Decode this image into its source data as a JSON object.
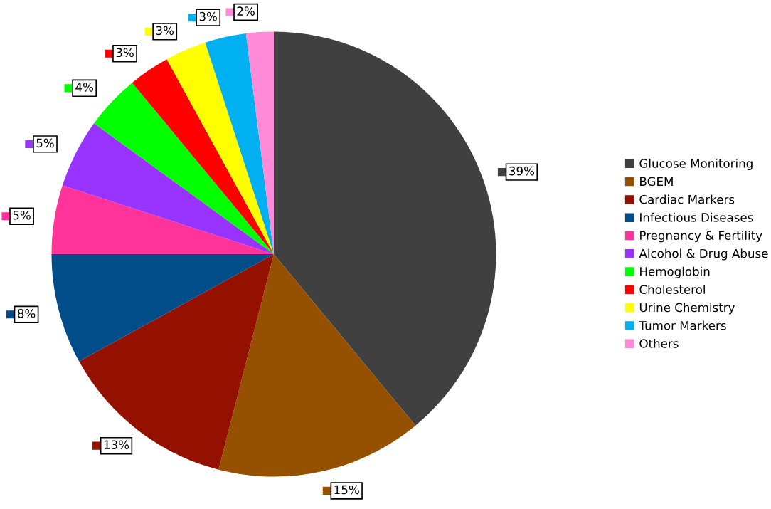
{
  "chart_data": {
    "type": "pie",
    "categories": [
      "Glucose Monitoring",
      "BGEM",
      "Cardiac Markers",
      "Infectious Diseases",
      "Pregnancy & Fertility",
      "Alcohol & Drug Abuse",
      "Hemoglobin",
      "Cholesterol",
      "Urine Chemistry",
      "Tumor Markers",
      "Others"
    ],
    "values": [
      39,
      15,
      13,
      8,
      5,
      5,
      4,
      3,
      3,
      3,
      2
    ],
    "colors": [
      "#404040",
      "#955000",
      "#941100",
      "#004d8a",
      "#ff3399",
      "#9933ff",
      "#00ff00",
      "#ff0000",
      "#ffff00",
      "#00b0f0",
      "#ff8ad8"
    ],
    "value_labels": [
      "39%",
      "15%",
      "13%",
      "8%",
      "5%",
      "5%",
      "4%",
      "3%",
      "3%",
      "3%",
      "2%"
    ],
    "legend": "right"
  }
}
